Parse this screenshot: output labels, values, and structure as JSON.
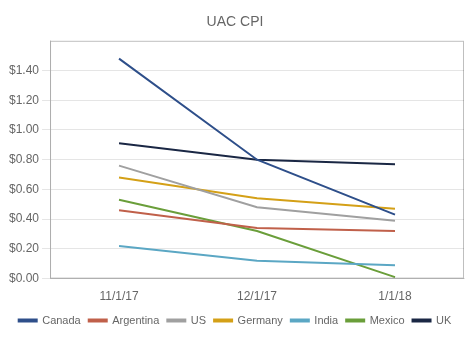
{
  "chart_data": {
    "type": "line",
    "title": "UAC CPI",
    "categories": [
      "11/1/17",
      "12/1/17",
      "1/1/18"
    ],
    "series": [
      {
        "name": "Canada",
        "color": "#2E4F8A",
        "values": [
          1.48,
          0.8,
          0.43
        ]
      },
      {
        "name": "Argentina",
        "color": "#C0604A",
        "values": [
          0.46,
          0.34,
          0.32
        ]
      },
      {
        "name": "US",
        "color": "#A0A0A0",
        "values": [
          0.76,
          0.48,
          0.39
        ]
      },
      {
        "name": "Germany",
        "color": "#D4A017",
        "values": [
          0.68,
          0.54,
          0.47
        ]
      },
      {
        "name": "India",
        "color": "#5BA7C4",
        "values": [
          0.22,
          0.12,
          0.09
        ]
      },
      {
        "name": "Mexico",
        "color": "#6A9E3A",
        "values": [
          0.53,
          0.32,
          0.01
        ]
      },
      {
        "name": "UK",
        "color": "#1A2744",
        "values": [
          0.91,
          0.8,
          0.77
        ]
      }
    ],
    "ylim": [
      0,
      1.6
    ],
    "yticks": [
      {
        "value": 0,
        "label": "$0.00"
      },
      {
        "value": 0.2,
        "label": "$0.20"
      },
      {
        "value": 0.4,
        "label": "$0.40"
      },
      {
        "value": 0.6,
        "label": "$0.60"
      },
      {
        "value": 0.8,
        "label": "$0.80"
      },
      {
        "value": 1.0,
        "label": "$1.00"
      },
      {
        "value": 1.2,
        "label": "$1.20"
      },
      {
        "value": 1.4,
        "label": "$1.40"
      }
    ],
    "grid": true,
    "legend": "bottom"
  }
}
